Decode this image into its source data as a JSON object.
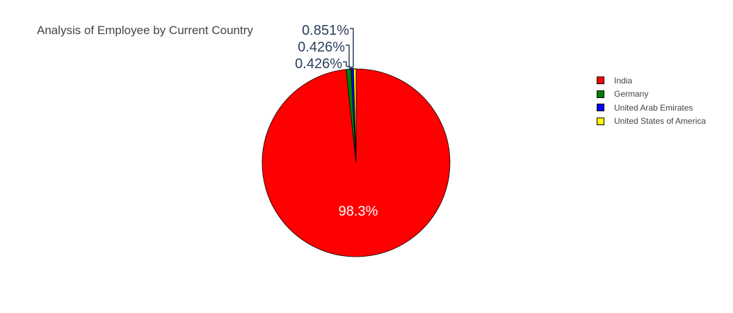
{
  "chart_data": {
    "type": "pie",
    "title": "Analysis of Employee by Current Country",
    "categories": [
      "India",
      "Germany",
      "United Arab Emirates",
      "United States of America"
    ],
    "values": [
      98.3,
      0.851,
      0.426,
      0.426
    ],
    "labels": [
      "98.3%",
      "0.851%",
      "0.426%",
      "0.426%"
    ],
    "colors": [
      "#ff0000",
      "#008000",
      "#0000ff",
      "#ffff00"
    ],
    "legend_position": "right"
  }
}
